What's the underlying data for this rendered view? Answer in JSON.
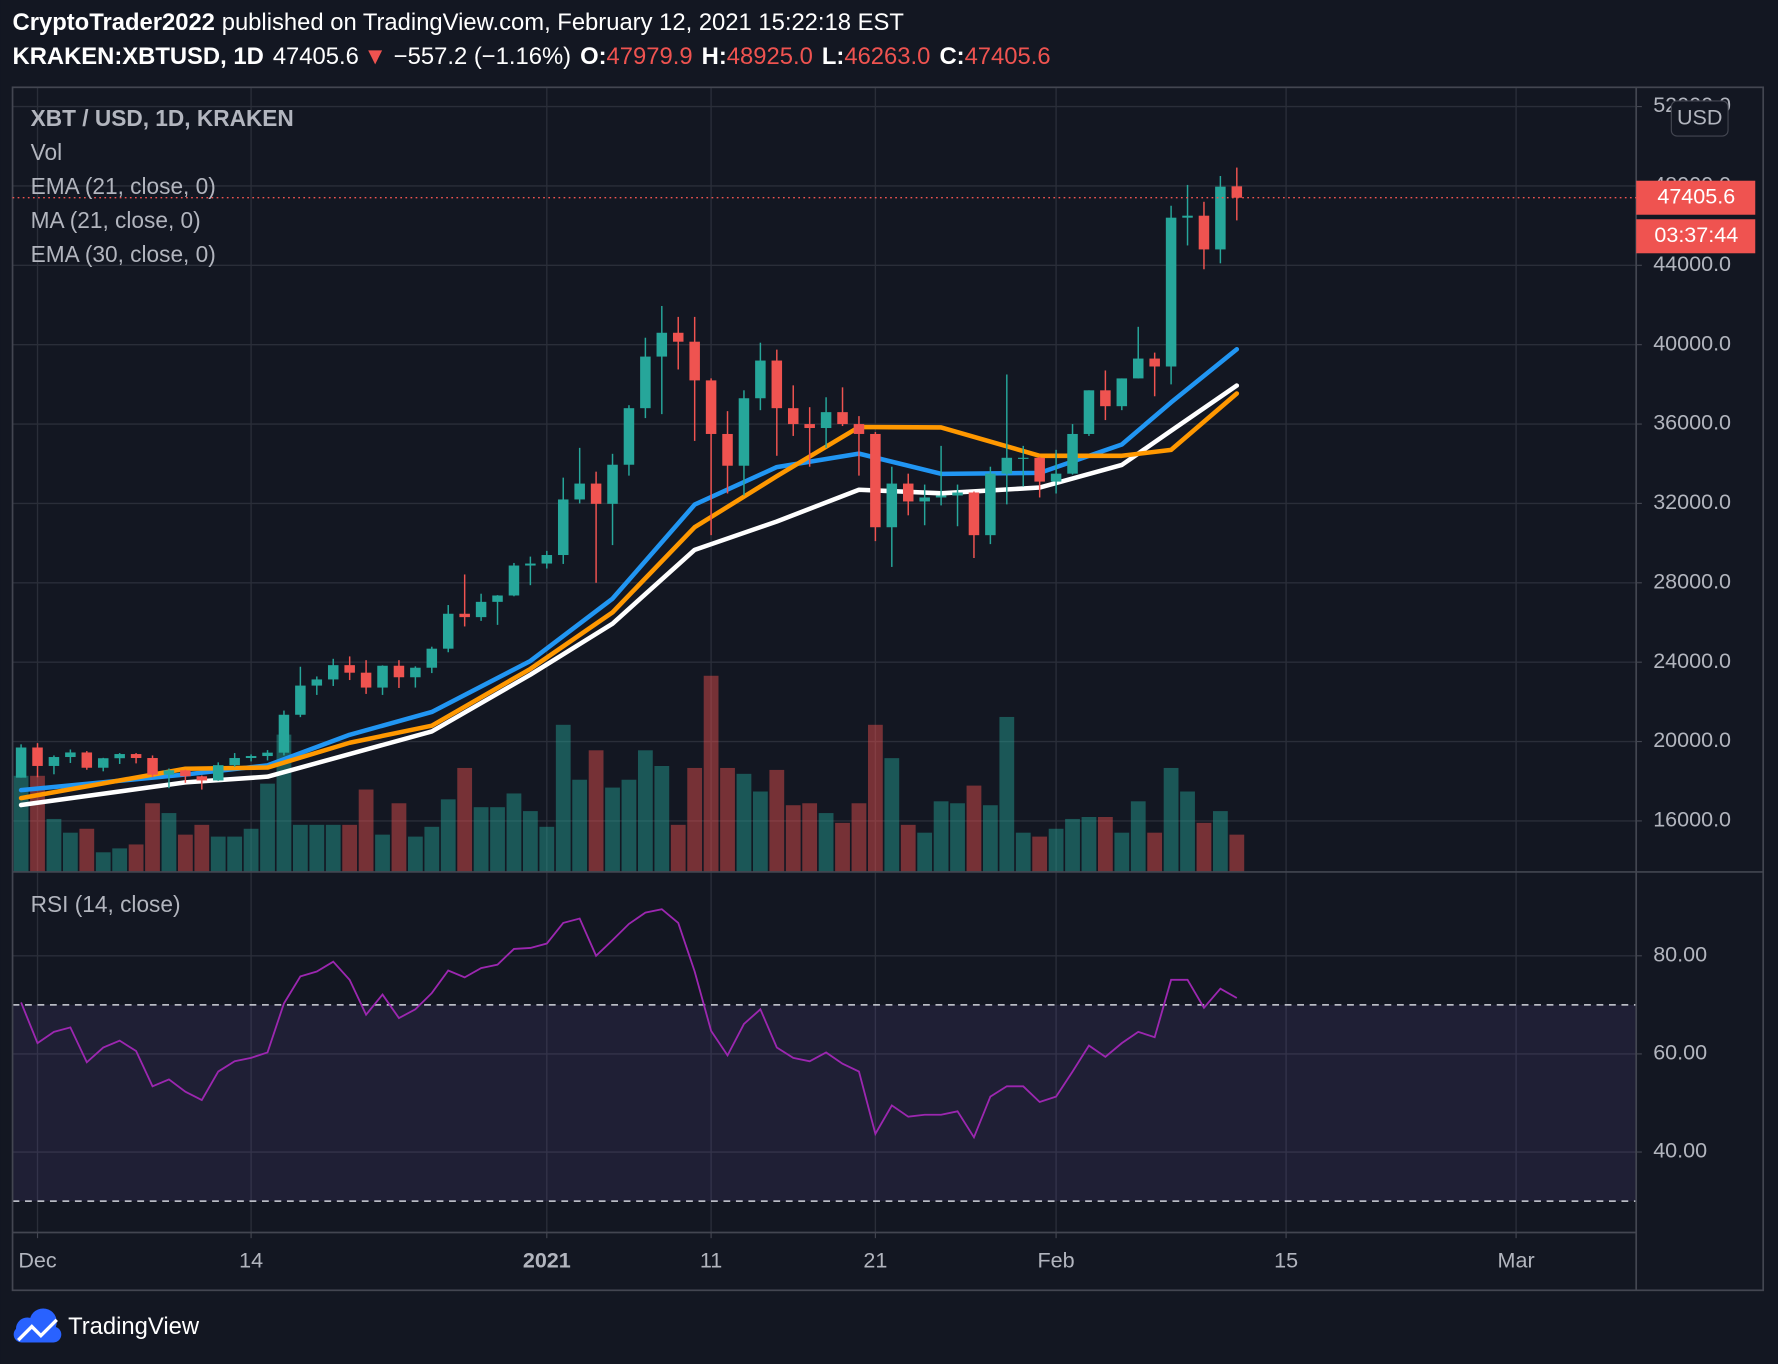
{
  "header": {
    "author": "CryptoTrader2022",
    "published": "published on TradingView.com, February 12, 2021 15:22:18 EST",
    "symbol": "KRAKEN:XBTUSD, 1D",
    "last": "47405.6",
    "arrow": "▼",
    "change": "−557.2 (−1.16%)",
    "open_label": "O:",
    "open": "47979.9",
    "high_label": "H:",
    "high": "48925.0",
    "low_label": "L:",
    "low": "46263.0",
    "close_label": "C:",
    "close": "47405.6"
  },
  "footer": {
    "brand": "TradingView"
  },
  "chart_data": [
    {
      "type": "candlestick",
      "title": "XBT / USD, 1D, KRAKEN",
      "currency": "USD",
      "countdown": "03:37:44",
      "up_color": "#26a69a",
      "down_color": "#ef5350",
      "grid": true,
      "x": [
        -1,
        0,
        1,
        2,
        3,
        4,
        5,
        6,
        7,
        8,
        9,
        10,
        11,
        12,
        13,
        14,
        15,
        16,
        17,
        18,
        19,
        20,
        21,
        22,
        23,
        24,
        25,
        26,
        27,
        28,
        29,
        30,
        31,
        32,
        33,
        34,
        35,
        36,
        37,
        38,
        39,
        40,
        41,
        42,
        43,
        44,
        45,
        46,
        47,
        48,
        49,
        50,
        51,
        52,
        53,
        54,
        55,
        56,
        57,
        58,
        59,
        60,
        61,
        62,
        63,
        64,
        65,
        66,
        67,
        68,
        69,
        70,
        71,
        72,
        73
      ],
      "open": [
        18180,
        19700,
        18770,
        19220,
        19450,
        18680,
        19160,
        19370,
        19170,
        18330,
        18550,
        18250,
        18040,
        18810,
        19170,
        19270,
        19440,
        21350,
        22820,
        23130,
        23850,
        23470,
        22720,
        23820,
        23240,
        23720,
        24680,
        26440,
        26270,
        27040,
        27360,
        28870,
        28970,
        29400,
        32200,
        33000,
        31980,
        33950,
        36800,
        39400,
        40600,
        40150,
        38200,
        35500,
        33900,
        37300,
        39200,
        36800,
        36000,
        35800,
        36600,
        36000,
        35500,
        30800,
        33000,
        32100,
        32300,
        32400,
        32550,
        30400,
        33500,
        34300,
        34300,
        33100,
        33500,
        35500,
        37700,
        36900,
        38300,
        39300,
        38900,
        46400,
        46500,
        44800,
        47979.9
      ],
      "high": [
        19860,
        19920,
        19300,
        19600,
        19520,
        19180,
        19420,
        19420,
        19300,
        18640,
        18580,
        18290,
        18950,
        19420,
        19350,
        19570,
        21560,
        23770,
        23280,
        24170,
        24290,
        24100,
        23840,
        24100,
        23790,
        24780,
        26880,
        28420,
        27450,
        27380,
        29000,
        29320,
        29610,
        33300,
        34800,
        33600,
        34500,
        36950,
        40350,
        41950,
        41400,
        41400,
        38300,
        36650,
        37700,
        40100,
        39750,
        37950,
        36850,
        37350,
        37850,
        36400,
        35600,
        33850,
        33500,
        32950,
        34900,
        32950,
        32600,
        33850,
        38500,
        34900,
        34350,
        34700,
        36000,
        37700,
        38700,
        38300,
        40900,
        39600,
        47000,
        48050,
        47200,
        48500,
        48925
      ],
      "low": [
        18180,
        18200,
        18350,
        18920,
        18580,
        18500,
        18870,
        18900,
        18200,
        17650,
        17920,
        17580,
        18020,
        18730,
        19000,
        19050,
        19300,
        21230,
        22350,
        22800,
        23100,
        22400,
        22350,
        22700,
        22720,
        23450,
        24500,
        25800,
        26080,
        25880,
        27320,
        27880,
        28720,
        28950,
        32000,
        28000,
        29900,
        33400,
        36300,
        36500,
        38750,
        35150,
        30400,
        32500,
        32400,
        36700,
        34400,
        35400,
        33850,
        34800,
        35900,
        33400,
        30100,
        28800,
        31400,
        30900,
        31900,
        30850,
        29250,
        29950,
        31950,
        32850,
        32300,
        32500,
        33450,
        35400,
        36200,
        36700,
        38300,
        37400,
        38000,
        45000,
        43800,
        44100,
        46263
      ],
      "close": [
        19700,
        18770,
        19220,
        19450,
        18680,
        19160,
        19370,
        19170,
        18330,
        18550,
        18250,
        18040,
        18810,
        19170,
        19270,
        19440,
        21350,
        22820,
        23130,
        23850,
        23470,
        22720,
        23820,
        23240,
        23720,
        24680,
        26440,
        26270,
        27040,
        27360,
        28870,
        28970,
        29400,
        32200,
        33000,
        31980,
        33950,
        36800,
        39400,
        40600,
        40150,
        38200,
        35500,
        33900,
        37300,
        39200,
        36800,
        36000,
        35800,
        36600,
        36000,
        35500,
        30800,
        33000,
        32100,
        32300,
        32400,
        32550,
        30400,
        33500,
        34300,
        34300,
        33100,
        33500,
        35500,
        37700,
        36900,
        38300,
        39300,
        38900,
        46400,
        46500,
        44800,
        47962.8,
        47405.6
      ],
      "volume": {
        "name": "Vol",
        "ylim": [
          0,
          400
        ],
        "values": [
          49,
          49,
          27,
          20,
          22,
          10,
          12,
          14,
          35,
          30,
          19,
          24,
          18,
          18,
          22,
          45,
          70,
          24,
          24,
          24,
          24,
          42,
          19,
          35,
          18,
          23,
          37,
          53,
          33,
          33,
          40,
          31,
          23,
          75,
          47,
          62,
          43,
          47,
          62,
          54,
          24,
          53,
          100,
          53,
          50,
          41,
          52,
          34,
          35,
          30,
          25,
          35,
          75,
          58,
          24,
          20,
          36,
          35,
          44,
          34,
          79,
          20,
          18,
          22,
          27,
          28,
          28,
          20,
          36,
          20,
          53,
          41,
          25,
          31,
          19
        ]
      },
      "series": [
        {
          "name": "EMA (21, close, 0)",
          "color": "#2196f3",
          "x": [
            -1,
            9,
            14,
            19,
            24,
            30,
            35,
            40,
            45,
            50,
            55,
            61,
            66,
            69,
            73
          ],
          "values": [
            17550,
            18340,
            18800,
            20340,
            21490,
            24060,
            27200,
            31940,
            33830,
            34510,
            33490,
            33540,
            34970,
            37090,
            39770
          ]
        },
        {
          "name": "MA (21, close, 0)",
          "color": "#ffffff",
          "x": [
            -1,
            9,
            14,
            19,
            24,
            30,
            35,
            40,
            45,
            50,
            55,
            61,
            66,
            69,
            73
          ],
          "values": [
            16800,
            17940,
            18230,
            19370,
            20510,
            23370,
            25940,
            29660,
            31090,
            32690,
            32510,
            32800,
            33940,
            35660,
            37940
          ]
        },
        {
          "name": "EMA (30, close, 0)",
          "color": "#ff9800",
          "x": [
            -1,
            9,
            14,
            19,
            24,
            30,
            35,
            40,
            45,
            50,
            55,
            61,
            66,
            69,
            73
          ],
          "values": [
            17150,
            18630,
            18690,
            19940,
            20800,
            23660,
            26510,
            30800,
            33370,
            35850,
            35830,
            34400,
            34400,
            34700,
            37540
          ]
        }
      ],
      "xlim": [
        -1.52,
        97.31
      ],
      "xticks": [
        {
          "value": 0,
          "label": "Dec"
        },
        {
          "value": 13,
          "label": "14"
        },
        {
          "value": 31,
          "label": "2021"
        },
        {
          "value": 41,
          "label": "11"
        },
        {
          "value": 51,
          "label": "21"
        },
        {
          "value": 62,
          "label": "Feb"
        },
        {
          "value": 76,
          "label": "15"
        },
        {
          "value": 90,
          "label": "Mar"
        }
      ],
      "ylim": [
        13430,
        52970
      ],
      "yticks": [
        {
          "value": 16000,
          "label": "16000.0"
        },
        {
          "value": 20000,
          "label": "20000.0"
        },
        {
          "value": 24000,
          "label": "24000.0"
        },
        {
          "value": 28000,
          "label": "28000.0"
        },
        {
          "value": 32000,
          "label": "32000.0"
        },
        {
          "value": 36000,
          "label": "36000.0"
        },
        {
          "value": 40000,
          "label": "40000.0"
        },
        {
          "value": 44000,
          "label": "44000.0"
        },
        {
          "value": 48000,
          "label": "48000.0"
        },
        {
          "value": 52000,
          "label": "52000.0"
        }
      ]
    },
    {
      "type": "line",
      "title": "RSI (14, close)",
      "color": "#9c27b0",
      "band_color": "#7e57c2",
      "bands": [
        30,
        70
      ],
      "grid": true,
      "x": [
        -1,
        0,
        1,
        2,
        3,
        4,
        5,
        6,
        7,
        8,
        9,
        10,
        11,
        12,
        13,
        14,
        15,
        16,
        17,
        18,
        19,
        20,
        21,
        22,
        23,
        24,
        25,
        26,
        27,
        28,
        29,
        30,
        31,
        32,
        33,
        34,
        35,
        36,
        37,
        38,
        39,
        40,
        41,
        42,
        43,
        44,
        45,
        46,
        47,
        48,
        49,
        50,
        51,
        52,
        53,
        54,
        55,
        56,
        57,
        58,
        59,
        60,
        61,
        62,
        63,
        64,
        65,
        66,
        67,
        68,
        69,
        70,
        71,
        72,
        73
      ],
      "values": [
        70.5,
        62.2,
        64.5,
        65.4,
        58.3,
        61.3,
        62.7,
        60.6,
        53.4,
        54.8,
        52.3,
        50.6,
        56.4,
        58.5,
        59.2,
        60.3,
        70.3,
        75.8,
        76.8,
        78.8,
        75.1,
        68.0,
        72.1,
        67.3,
        69.1,
        72.4,
        77.0,
        75.6,
        77.5,
        78.2,
        81.4,
        81.6,
        82.5,
        86.7,
        87.6,
        80.0,
        83.2,
        86.5,
        88.8,
        89.5,
        86.7,
        76.8,
        64.7,
        59.7,
        66.1,
        69.1,
        61.3,
        59.2,
        58.5,
        60.3,
        58.0,
        56.4,
        43.7,
        49.5,
        47.2,
        47.6,
        47.6,
        48.3,
        43.0,
        51.3,
        53.4,
        53.4,
        50.2,
        51.3,
        56.4,
        61.7,
        59.4,
        62.2,
        64.5,
        63.4,
        75.1,
        75.1,
        69.4,
        73.3,
        71.4
      ],
      "xlim": [
        -1.52,
        97.31
      ],
      "ylim": [
        23.6,
        97.1
      ],
      "yticks": [
        {
          "value": 40,
          "label": "40.00"
        },
        {
          "value": 60,
          "label": "60.00"
        },
        {
          "value": 80,
          "label": "80.00"
        }
      ]
    }
  ]
}
